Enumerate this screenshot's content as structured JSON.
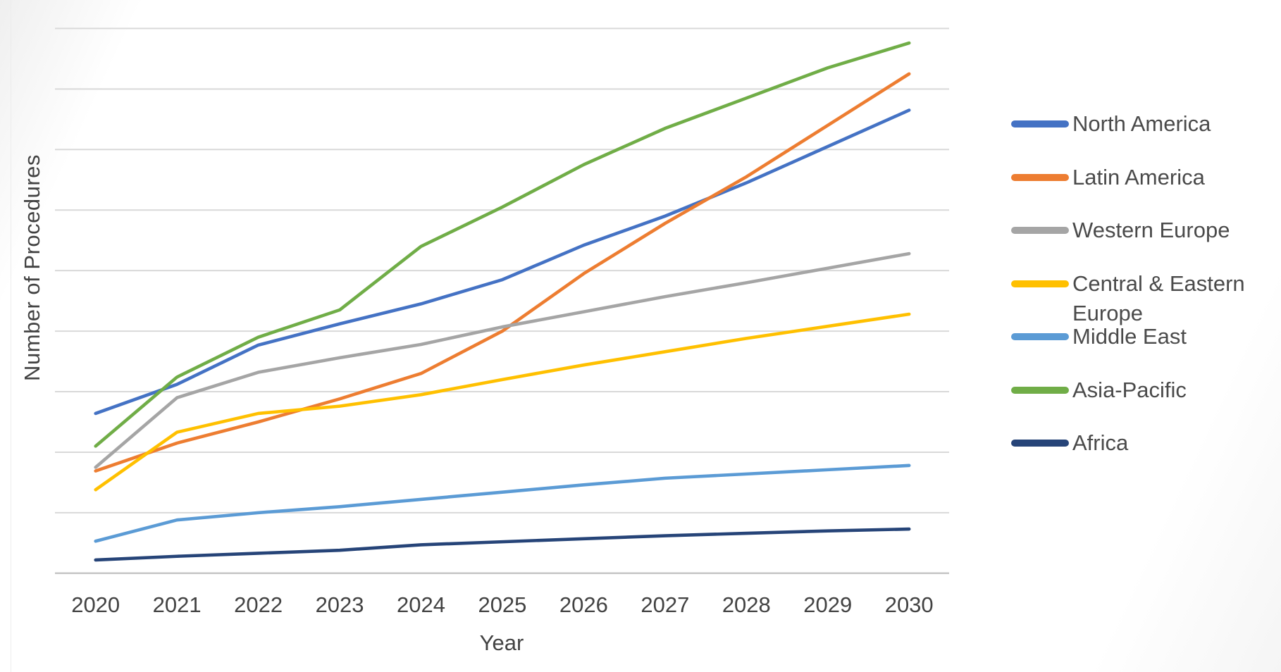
{
  "chart_data": {
    "type": "line",
    "title": "",
    "xlabel": "Year",
    "ylabel": "Number of Procedures",
    "x": [
      2020,
      2021,
      2022,
      2023,
      2024,
      2025,
      2026,
      2027,
      2028,
      2029,
      2030
    ],
    "x_tick_labels": [
      "2020",
      "2021",
      "2022",
      "2023",
      "2024",
      "2025",
      "2026",
      "2027",
      "2028",
      "2029",
      "2030"
    ],
    "y_axis_tick_labels": "none (y axis is unlabeled)",
    "y_units": "relative units; 1.0 = one horizontal gridline interval, baseline axis = 0",
    "ylim": [
      0,
      9.6
    ],
    "gridlines": {
      "horizontal": true,
      "vertical": false,
      "step": 1,
      "count": 9,
      "color": "#d9d9d9"
    },
    "axis_line_color": "#c6c6c6",
    "legend_position": "right",
    "series": [
      {
        "name": "North America",
        "color": "#4472C4",
        "values": [
          2.64,
          3.12,
          3.77,
          4.12,
          4.45,
          4.85,
          5.42,
          5.9,
          6.45,
          7.05,
          7.65
        ]
      },
      {
        "name": "Latin America",
        "color": "#ED7D31",
        "values": [
          1.69,
          2.15,
          2.5,
          2.88,
          3.3,
          4.0,
          4.95,
          5.78,
          6.55,
          7.4,
          8.25
        ]
      },
      {
        "name": "Western Europe",
        "color": "#A5A5A5",
        "values": [
          1.75,
          2.9,
          3.32,
          3.56,
          3.78,
          4.07,
          4.32,
          4.57,
          4.8,
          5.04,
          5.28
        ]
      },
      {
        "name": "Central & Eastern Europe",
        "color": "#FFC000",
        "values": [
          1.38,
          2.33,
          2.64,
          2.76,
          2.95,
          3.2,
          3.44,
          3.66,
          3.88,
          4.08,
          4.28
        ]
      },
      {
        "name": "Middle East",
        "color": "#5B9BD5",
        "values": [
          0.53,
          0.88,
          1.0,
          1.1,
          1.22,
          1.34,
          1.46,
          1.57,
          1.64,
          1.71,
          1.78
        ]
      },
      {
        "name": "Asia-Pacific",
        "color": "#70AD47",
        "values": [
          2.1,
          3.24,
          3.9,
          4.35,
          5.4,
          6.05,
          6.75,
          7.35,
          7.85,
          8.35,
          8.76
        ]
      },
      {
        "name": "Africa",
        "color": "#264478",
        "values": [
          0.22,
          0.28,
          0.33,
          0.38,
          0.47,
          0.52,
          0.57,
          0.62,
          0.66,
          0.7,
          0.73
        ]
      }
    ]
  }
}
